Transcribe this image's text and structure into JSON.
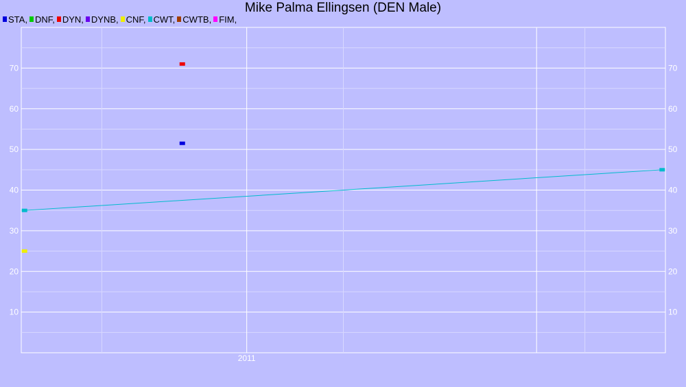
{
  "chart_data": {
    "type": "scatter",
    "title": "Mike Palma Ellingsen (DEN Male)",
    "xlabel": "",
    "ylabel": "",
    "x_tick_labels": [
      "2011"
    ],
    "y_ticks": [
      10,
      20,
      30,
      40,
      50,
      60,
      70
    ],
    "ylim": [
      0,
      80
    ],
    "grid": true,
    "legend_placement": "top-left",
    "background_color": "#bebeff",
    "gridline_color": "#ffffff",
    "legend": [
      {
        "label": "STA,",
        "color": "#0000dd"
      },
      {
        "label": "DNF,",
        "color": "#00cc00"
      },
      {
        "label": "DYN,",
        "color": "#ee0000"
      },
      {
        "label": "DYNB,",
        "color": "#6a00ee"
      },
      {
        "label": "CNF,",
        "color": "#eeee00"
      },
      {
        "label": "CWT,",
        "color": "#00bbcc"
      },
      {
        "label": "CWTB,",
        "color": "#a03c00"
      },
      {
        "label": "FIM,",
        "color": "#ff00ff"
      }
    ],
    "series": [
      {
        "name": "STA,",
        "color": "#0000dd",
        "connect": false,
        "points": [
          {
            "x": 0.25,
            "y": 51.5
          }
        ]
      },
      {
        "name": "DYN,",
        "color": "#ee0000",
        "connect": false,
        "points": [
          {
            "x": 0.25,
            "y": 71
          }
        ]
      },
      {
        "name": "CNF,",
        "color": "#eeee00",
        "connect": false,
        "points": [
          {
            "x": 0.005,
            "y": 25
          }
        ]
      },
      {
        "name": "CWT,",
        "color": "#00bbcc",
        "connect": true,
        "points": [
          {
            "x": 0.005,
            "y": 35
          },
          {
            "x": 0.995,
            "y": 45
          }
        ]
      }
    ]
  }
}
